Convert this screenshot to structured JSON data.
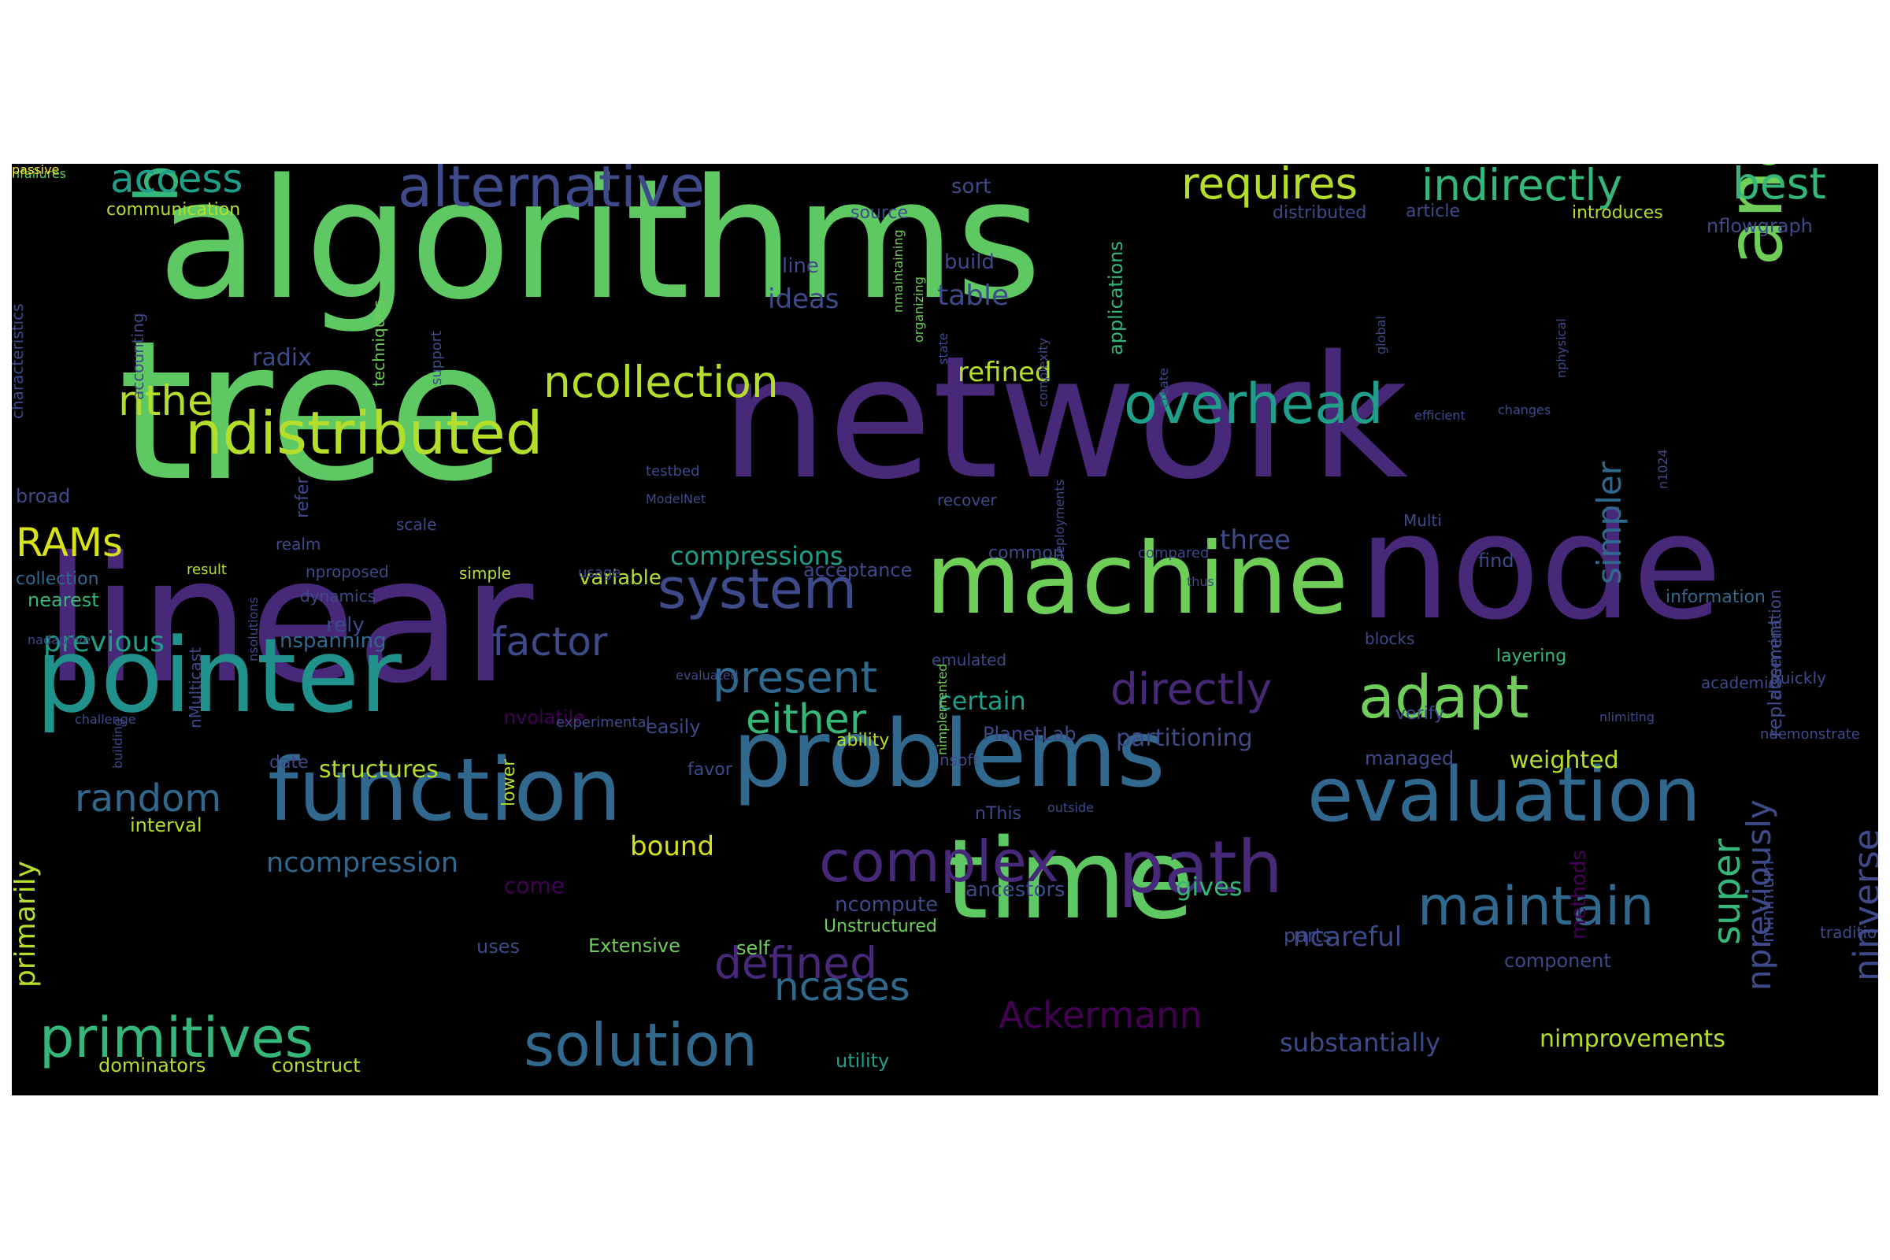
{
  "colors": {
    "background": "#000000",
    "page": "#ffffff",
    "palette": [
      "#440154",
      "#482878",
      "#3e4a89",
      "#31688e",
      "#26828e",
      "#1f9e89",
      "#35b779",
      "#6ece58",
      "#b5de2b",
      "#fde725"
    ]
  },
  "words": [
    {
      "text": "algorithms",
      "color": "#5ec962"
    },
    {
      "text": "tree",
      "color": "#5ec962"
    },
    {
      "text": "network",
      "color": "#482878"
    },
    {
      "text": "linear",
      "color": "#482878"
    },
    {
      "text": "node",
      "color": "#482878"
    },
    {
      "text": "machine",
      "color": "#6ece58"
    },
    {
      "text": "pointer",
      "color": "#21918c"
    },
    {
      "text": "time",
      "color": "#5ec962"
    },
    {
      "text": "problems",
      "color": "#31688e"
    },
    {
      "text": "evaluation",
      "color": "#31688e"
    },
    {
      "text": "function",
      "color": "#31688e"
    },
    {
      "text": "Multicast",
      "color": "#21918c"
    },
    {
      "text": "analysis",
      "color": "#6ece58"
    },
    {
      "text": "path",
      "color": "#482878"
    },
    {
      "text": "ndistributed",
      "color": "#b5de2b"
    },
    {
      "text": "primitives",
      "color": "#35b779"
    },
    {
      "text": "solution",
      "color": "#31688e"
    },
    {
      "text": "maintain",
      "color": "#31688e"
    },
    {
      "text": "complex",
      "color": "#482878"
    },
    {
      "text": "alternative",
      "color": "#3e4a89"
    },
    {
      "text": "based",
      "color": "#35b779"
    },
    {
      "text": "overhead",
      "color": "#1f9e89"
    },
    {
      "text": "system",
      "color": "#3e4a89"
    },
    {
      "text": "ncollection",
      "color": "#b5de2b"
    },
    {
      "text": "adapt",
      "color": "#6ece58"
    },
    {
      "text": "data",
      "color": "#31688e"
    },
    {
      "text": "requires",
      "color": "#b5de2b"
    },
    {
      "text": "indirectly",
      "color": "#35b779"
    },
    {
      "text": "best",
      "color": "#35b779"
    },
    {
      "text": "access",
      "color": "#1f9e89"
    },
    {
      "text": "directly",
      "color": "#482878"
    },
    {
      "text": "present",
      "color": "#31688e"
    },
    {
      "text": "either",
      "color": "#35b779"
    },
    {
      "text": "defined",
      "color": "#482878"
    },
    {
      "text": "ncases",
      "color": "#31688e"
    },
    {
      "text": "random",
      "color": "#31688e"
    },
    {
      "text": "nthe",
      "color": "#b5de2b"
    },
    {
      "text": "RAMs",
      "color": "#d8e219"
    },
    {
      "text": "factor",
      "color": "#3e4a89"
    },
    {
      "text": "Ackermann",
      "color": "#440154"
    },
    {
      "text": "npreviously",
      "color": "#3e4a89"
    },
    {
      "text": "super",
      "color": "#35b779"
    },
    {
      "text": "simpler",
      "color": "#31688e"
    },
    {
      "text": "ninverse",
      "color": "#3e4a89"
    },
    {
      "text": "compressions",
      "color": "#1f9e89"
    },
    {
      "text": "previous",
      "color": "#1f9e89"
    },
    {
      "text": "ncompression",
      "color": "#31688e"
    },
    {
      "text": "refined",
      "color": "#b5de2b"
    },
    {
      "text": "bound",
      "color": "#d8e219"
    },
    {
      "text": "structures",
      "color": "#b5de2b"
    },
    {
      "text": "primarily",
      "color": "#b5de2b"
    },
    {
      "text": "nimprovements",
      "color": "#b5de2b"
    },
    {
      "text": "substantially",
      "color": "#3e4a89"
    },
    {
      "text": "three",
      "color": "#3e4a89"
    },
    {
      "text": "ncareful",
      "color": "#3e4a89"
    },
    {
      "text": "weighted",
      "color": "#b5de2b"
    },
    {
      "text": "table",
      "color": "#3e4a89"
    },
    {
      "text": "ideas",
      "color": "#3e4a89"
    },
    {
      "text": "radix",
      "color": "#3e4a89"
    },
    {
      "text": "certain",
      "color": "#1f9e89"
    },
    {
      "text": "partitioning",
      "color": "#3e4a89"
    },
    {
      "text": "gives",
      "color": "#35b779"
    },
    {
      "text": "replacement",
      "color": "#3e4a89"
    },
    {
      "text": "methods",
      "color": "#440154"
    },
    {
      "text": "flowgraph",
      "color": "#3e4a89"
    },
    {
      "text": "nflowgraph",
      "color": "#3e4a89"
    },
    {
      "text": "communication",
      "color": "#b5de2b"
    },
    {
      "text": "sort",
      "color": "#3e4a89"
    },
    {
      "text": "build",
      "color": "#3e4a89"
    },
    {
      "text": "line",
      "color": "#3e4a89"
    },
    {
      "text": "applications",
      "color": "#35b779"
    },
    {
      "text": "come",
      "color": "#440154"
    },
    {
      "text": "nvolatile",
      "color": "#440154"
    },
    {
      "text": "variable",
      "color": "#b5de2b"
    },
    {
      "text": "nspanning",
      "color": "#31688e"
    },
    {
      "text": "rely",
      "color": "#3e4a89"
    },
    {
      "text": "nearest",
      "color": "#35b779"
    },
    {
      "text": "interval",
      "color": "#b5de2b"
    },
    {
      "text": "dominators",
      "color": "#b5de2b"
    },
    {
      "text": "construct",
      "color": "#b5de2b"
    },
    {
      "text": "utility",
      "color": "#1f9e89"
    },
    {
      "text": "parts",
      "color": "#3e4a89"
    },
    {
      "text": "component",
      "color": "#3e4a89"
    },
    {
      "text": "managed",
      "color": "#3e4a89"
    },
    {
      "text": "favor",
      "color": "#3e4a89"
    },
    {
      "text": "easily",
      "color": "#3e4a89"
    },
    {
      "text": "verify",
      "color": "#3e4a89"
    },
    {
      "text": "find",
      "color": "#3e4a89"
    },
    {
      "text": "common",
      "color": "#3e4a89"
    },
    {
      "text": "ancestors",
      "color": "#3e4a89"
    },
    {
      "text": "ncompute",
      "color": "#3e4a89"
    },
    {
      "text": "minimum",
      "color": "#3e4a89"
    },
    {
      "text": "layering",
      "color": "#35b779"
    },
    {
      "text": "information",
      "color": "#31688e"
    },
    {
      "text": "broad",
      "color": "#3e4a89"
    },
    {
      "text": "collection",
      "color": "#31688e"
    },
    {
      "text": "nfailures",
      "color": "#5ec962"
    },
    {
      "text": "characteristics",
      "color": "#3e4a89"
    },
    {
      "text": "accounting",
      "color": "#3e4a89"
    },
    {
      "text": "techniques",
      "color": "#6ece58"
    },
    {
      "text": "support",
      "color": "#3e4a89"
    },
    {
      "text": "organizing",
      "color": "#6ece58"
    },
    {
      "text": "nmaintaining",
      "color": "#6ece58"
    },
    {
      "text": "state",
      "color": "#3e4a89"
    },
    {
      "text": "source",
      "color": "#3e4a89"
    },
    {
      "text": "distributed",
      "color": "#3e4a89"
    },
    {
      "text": "article",
      "color": "#3e4a89"
    },
    {
      "text": "introduces",
      "color": "#b5de2b"
    },
    {
      "text": "scale",
      "color": "#3e4a89"
    },
    {
      "text": "realm",
      "color": "#3e4a89"
    },
    {
      "text": "acceptance",
      "color": "#3e4a89"
    },
    {
      "text": "create",
      "color": "#3e4a89"
    },
    {
      "text": "global",
      "color": "#3e4a89"
    },
    {
      "text": "nphysical",
      "color": "#3e4a89"
    },
    {
      "text": "deployments",
      "color": "#3e4a89"
    },
    {
      "text": "complexity",
      "color": "#3e4a89"
    },
    {
      "text": "changes",
      "color": "#3e4a89"
    },
    {
      "text": "efficient",
      "color": "#3e4a89"
    },
    {
      "text": "testbed",
      "color": "#3e4a89"
    },
    {
      "text": "ModelNet",
      "color": "#3e4a89"
    },
    {
      "text": "recover",
      "color": "#3e4a89"
    },
    {
      "text": "Multi",
      "color": "#3e4a89"
    },
    {
      "text": "n1024",
      "color": "#3e4a89"
    },
    {
      "text": "compared",
      "color": "#3e4a89"
    },
    {
      "text": "thus",
      "color": "#3e4a89"
    },
    {
      "text": "refer",
      "color": "#3e4a89"
    },
    {
      "text": "nproposed",
      "color": "#3e4a89"
    },
    {
      "text": "dynamics",
      "color": "#3e4a89"
    },
    {
      "text": "simple",
      "color": "#b5de2b"
    },
    {
      "text": "result",
      "color": "#b5de2b"
    },
    {
      "text": "usage",
      "color": "#3e4a89"
    },
    {
      "text": "nadaptive",
      "color": "#3e4a89"
    },
    {
      "text": "nsolutions",
      "color": "#3e4a89"
    },
    {
      "text": "emulated",
      "color": "#3e4a89"
    },
    {
      "text": "evaluated",
      "color": "#3e4a89"
    },
    {
      "text": "quickly",
      "color": "#3e4a89"
    },
    {
      "text": "dissemination",
      "color": "#3e4a89"
    },
    {
      "text": "academic",
      "color": "#3e4a89"
    },
    {
      "text": "challenge",
      "color": "#3e4a89"
    },
    {
      "text": "experimental",
      "color": "#3e4a89"
    },
    {
      "text": "nlimiting",
      "color": "#3e4a89"
    },
    {
      "text": "ndemonstrate",
      "color": "#3e4a89"
    },
    {
      "text": "ability",
      "color": "#b5de2b"
    },
    {
      "text": "PlanetLab",
      "color": "#3e4a89"
    },
    {
      "text": "blocks",
      "color": "#3e4a89"
    },
    {
      "text": "nMulticast",
      "color": "#3e4a89"
    },
    {
      "text": "building",
      "color": "#3e4a89"
    },
    {
      "text": "date",
      "color": "#3e4a89"
    },
    {
      "text": "lower",
      "color": "#b5de2b"
    },
    {
      "text": "nsoft",
      "color": "#3e4a89"
    },
    {
      "text": "nimplemented",
      "color": "#6ece58"
    },
    {
      "text": "outside",
      "color": "#3e4a89"
    },
    {
      "text": "nThis",
      "color": "#3e4a89"
    },
    {
      "text": "uses",
      "color": "#3e4a89"
    },
    {
      "text": "Extensive",
      "color": "#6ece58"
    },
    {
      "text": "self",
      "color": "#6ece58"
    },
    {
      "text": "Unstructured",
      "color": "#6ece58"
    },
    {
      "text": "traditional",
      "color": "#3e4a89"
    },
    {
      "text": "passive",
      "color": "#fde725"
    }
  ]
}
